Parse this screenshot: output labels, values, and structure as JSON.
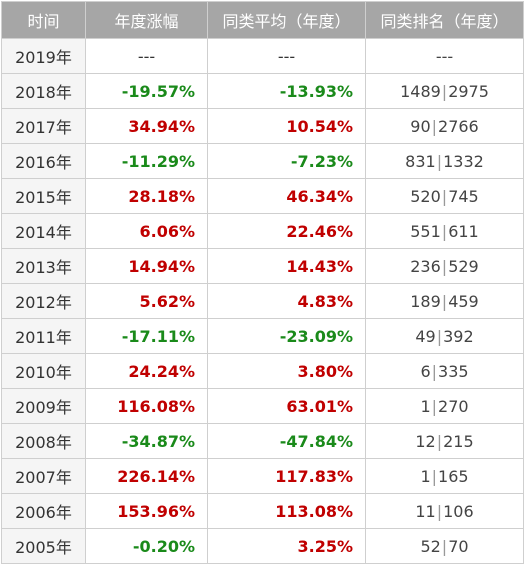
{
  "headers": [
    "时间",
    "年度涨幅",
    "同类平均（年度）",
    "同类排名（年度）"
  ],
  "colors": {
    "header_bg": "#a6a6a6",
    "positive": "#c00000",
    "negative": "#1a8a1a"
  },
  "rows": [
    {
      "year": "2019年",
      "change": "---",
      "avg": "---",
      "rank_pos": "---",
      "rank_total": ""
    },
    {
      "year": "2018年",
      "change": "-19.57%",
      "avg": "-13.93%",
      "rank_pos": "1489",
      "rank_total": "2975"
    },
    {
      "year": "2017年",
      "change": "34.94%",
      "avg": "10.54%",
      "rank_pos": "90",
      "rank_total": "2766"
    },
    {
      "year": "2016年",
      "change": "-11.29%",
      "avg": "-7.23%",
      "rank_pos": "831",
      "rank_total": "1332"
    },
    {
      "year": "2015年",
      "change": "28.18%",
      "avg": "46.34%",
      "rank_pos": "520",
      "rank_total": "745"
    },
    {
      "year": "2014年",
      "change": "6.06%",
      "avg": "22.46%",
      "rank_pos": "551",
      "rank_total": "611"
    },
    {
      "year": "2013年",
      "change": "14.94%",
      "avg": "14.43%",
      "rank_pos": "236",
      "rank_total": "529"
    },
    {
      "year": "2012年",
      "change": "5.62%",
      "avg": "4.83%",
      "rank_pos": "189",
      "rank_total": "459"
    },
    {
      "year": "2011年",
      "change": "-17.11%",
      "avg": "-23.09%",
      "rank_pos": "49",
      "rank_total": "392"
    },
    {
      "year": "2010年",
      "change": "24.24%",
      "avg": "3.80%",
      "rank_pos": "6",
      "rank_total": "335"
    },
    {
      "year": "2009年",
      "change": "116.08%",
      "avg": "63.01%",
      "rank_pos": "1",
      "rank_total": "270"
    },
    {
      "year": "2008年",
      "change": "-34.87%",
      "avg": "-47.84%",
      "rank_pos": "12",
      "rank_total": "215"
    },
    {
      "year": "2007年",
      "change": "226.14%",
      "avg": "117.83%",
      "rank_pos": "1",
      "rank_total": "165"
    },
    {
      "year": "2006年",
      "change": "153.96%",
      "avg": "113.08%",
      "rank_pos": "11",
      "rank_total": "106"
    },
    {
      "year": "2005年",
      "change": "-0.20%",
      "avg": "3.25%",
      "rank_pos": "52",
      "rank_total": "70"
    }
  ]
}
